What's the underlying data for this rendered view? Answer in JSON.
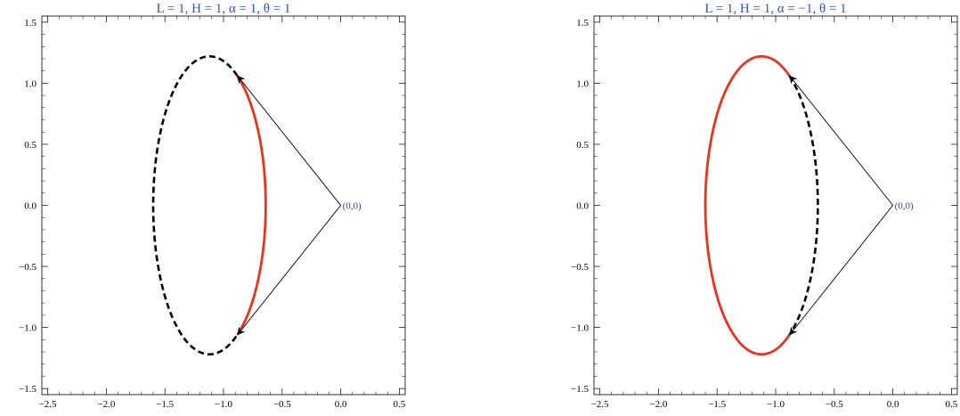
{
  "chart_data": [
    {
      "type": "line",
      "title": "L = 1, H = 1, α = 1, θ = 1",
      "xlim": [
        -2.55,
        0.55
      ],
      "ylim": [
        -1.55,
        1.55
      ],
      "xticks": [
        -2.5,
        -2.0,
        -1.5,
        -1.0,
        -0.5,
        0.0,
        0.5
      ],
      "yticks": [
        -1.5,
        -1.0,
        -0.5,
        0.0,
        0.5,
        1.0,
        1.5
      ],
      "xtick_labels": [
        "−2.5",
        "−2.0",
        "−1.5",
        "−1.0",
        "−0.5",
        "0.0",
        "0.5"
      ],
      "ytick_labels": [
        "−1.5",
        "−1.0",
        "−0.5",
        "0.0",
        "0.5",
        "1.0",
        "1.5"
      ],
      "ellipse": {
        "center": [
          -1.12,
          0.0
        ],
        "semi_axes": [
          0.48,
          1.22
        ]
      },
      "arc_split_y": 1.06,
      "highlight": "right",
      "dashed_color": "#000000",
      "solid_color": "#e8341c",
      "origin_point": [
        0.0,
        0.0
      ],
      "origin_label": "(0,0)",
      "arrow_targets": [
        [
          -0.88,
          1.06
        ],
        [
          -0.88,
          -1.06
        ]
      ],
      "grid": false
    },
    {
      "type": "line",
      "title": "L = 1, H = 1, α = −1, θ = 1",
      "xlim": [
        -2.55,
        0.55
      ],
      "ylim": [
        -1.55,
        1.55
      ],
      "xticks": [
        -2.5,
        -2.0,
        -1.5,
        -1.0,
        -0.5,
        0.0,
        0.5
      ],
      "yticks": [
        -1.5,
        -1.0,
        -0.5,
        0.0,
        0.5,
        1.0,
        1.5
      ],
      "xtick_labels": [
        "−2.5",
        "−2.0",
        "−1.5",
        "−1.0",
        "−0.5",
        "0.0",
        "0.5"
      ],
      "ytick_labels": [
        "−1.5",
        "−1.0",
        "−0.5",
        "0.0",
        "0.5",
        "1.0",
        "1.5"
      ],
      "ellipse": {
        "center": [
          -1.12,
          0.0
        ],
        "semi_axes": [
          0.48,
          1.22
        ]
      },
      "arc_split_y": 1.06,
      "highlight": "left",
      "dashed_color": "#000000",
      "solid_color": "#e8341c",
      "origin_point": [
        0.0,
        0.0
      ],
      "origin_label": "(0,0)",
      "arrow_targets": [
        [
          -0.88,
          1.06
        ],
        [
          -0.88,
          -1.06
        ]
      ],
      "grid": false
    }
  ],
  "colors": {
    "title": "#2a52d6",
    "origin_label": "#3a3aa8",
    "axis": "#000000"
  }
}
